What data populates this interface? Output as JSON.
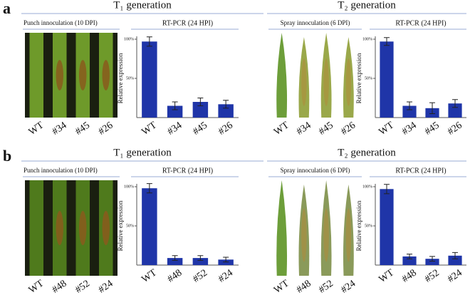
{
  "figure": {
    "panels": [
      {
        "label": "a",
        "generations": [
          {
            "title": "T₁ generation",
            "photo": {
              "title": "Punch innoculation (10 DPI)",
              "labels": [
                "WT",
                "#34",
                "#45",
                "#26"
              ]
            }
          },
          {
            "title": "T₂ generation",
            "photo": {
              "title": "Spray innoculation (6 DPI)",
              "labels": [
                "WT",
                "#34",
                "#45",
                "#26"
              ]
            }
          }
        ]
      },
      {
        "label": "b",
        "generations": [
          {
            "title": "T₁ generation",
            "photo": {
              "title": "Punch innoculation (10 DPI)",
              "labels": [
                "WT",
                "#48",
                "#52",
                "#24"
              ]
            }
          },
          {
            "title": "T₂ generation",
            "photo": {
              "title": "Spray innoculation (6 DPI)",
              "labels": [
                "WT",
                "#48",
                "#52",
                "#24"
              ]
            }
          }
        ]
      }
    ]
  },
  "chart_data": [
    {
      "type": "bar",
      "title": "RT-PCR (24 HPI)",
      "y_label": "Relative expression",
      "categories": [
        "WT",
        "#34",
        "#45",
        "#26"
      ],
      "values": [
        97,
        15,
        20,
        17
      ],
      "errors": [
        6,
        5,
        5,
        5
      ],
      "color": "#1f35a8",
      "ylim": [
        0,
        100
      ],
      "yticks": [
        {
          "value": 50,
          "label": "50%"
        },
        {
          "value": 100,
          "label": "100%"
        }
      ]
    },
    {
      "type": "bar",
      "title": "RT-PCR (24 HPI)",
      "y_label": "Relative expression",
      "categories": [
        "WT",
        "#34",
        "#45",
        "#26"
      ],
      "values": [
        97,
        15,
        12,
        18
      ],
      "errors": [
        5,
        5,
        7,
        5
      ],
      "color": "#1f35a8",
      "ylim": [
        0,
        100
      ],
      "yticks": [
        {
          "value": 50,
          "label": "50%"
        },
        {
          "value": 100,
          "label": "100%"
        }
      ]
    },
    {
      "type": "bar",
      "title": "RT-PCR (24 HPI)",
      "y_label": "Relative expression",
      "categories": [
        "WT",
        "#48",
        "#52",
        "#24"
      ],
      "values": [
        98,
        9,
        9,
        7
      ],
      "errors": [
        6,
        3,
        3,
        3
      ],
      "color": "#1f35a8",
      "ylim": [
        0,
        100
      ],
      "yticks": [
        {
          "value": 50,
          "label": "50%"
        },
        {
          "value": 100,
          "label": "100%"
        }
      ]
    },
    {
      "type": "bar",
      "title": "RT-PCR (24 HPI)",
      "y_label": "Relative expression",
      "categories": [
        "WT",
        "#48",
        "#52",
        "#24"
      ],
      "values": [
        97,
        11,
        8,
        12
      ],
      "errors": [
        6,
        3,
        3,
        4
      ],
      "color": "#1f35a8",
      "ylim": [
        0,
        100
      ],
      "yticks": [
        {
          "value": 50,
          "label": "50%"
        },
        {
          "value": 100,
          "label": "100%"
        }
      ]
    }
  ]
}
